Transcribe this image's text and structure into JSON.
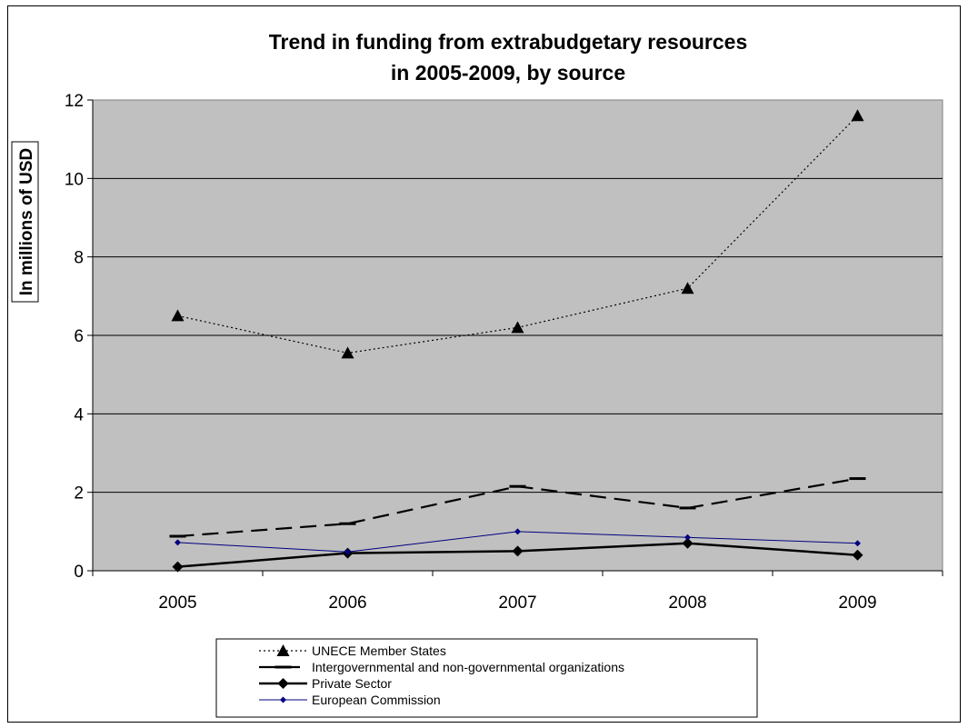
{
  "chart_data": {
    "type": "line",
    "title": [
      "Trend in funding from extrabudgetary resources",
      "in 2005-2009, by source"
    ],
    "xlabel": "",
    "ylabel": "In millions of USD",
    "categories": [
      "2005",
      "2006",
      "2007",
      "2008",
      "2009"
    ],
    "ylim": [
      0,
      12
    ],
    "yticks": [
      0,
      2,
      4,
      6,
      8,
      10,
      12
    ],
    "grid": true,
    "legend_position": "bottom",
    "plot_background": "#c0c0c0",
    "series": [
      {
        "name": "UNECE Member States",
        "values": [
          6.5,
          5.55,
          6.2,
          7.2,
          11.6
        ],
        "color": "#000000",
        "line": "dotted",
        "marker": "triangle"
      },
      {
        "name": "Intergovernmental and non-governmental organizations",
        "values": [
          0.88,
          1.2,
          2.15,
          1.6,
          2.35
        ],
        "color": "#000000",
        "line": "dashed",
        "marker": "dash"
      },
      {
        "name": "Private Sector",
        "values": [
          0.1,
          0.45,
          0.5,
          0.7,
          0.4
        ],
        "color": "#000000",
        "line": "solid-thick",
        "marker": "diamond"
      },
      {
        "name": "European Commission",
        "values": [
          0.72,
          0.48,
          1.0,
          0.85,
          0.7
        ],
        "color": "#000080",
        "line": "solid-thin",
        "marker": "small-diamond"
      }
    ]
  }
}
